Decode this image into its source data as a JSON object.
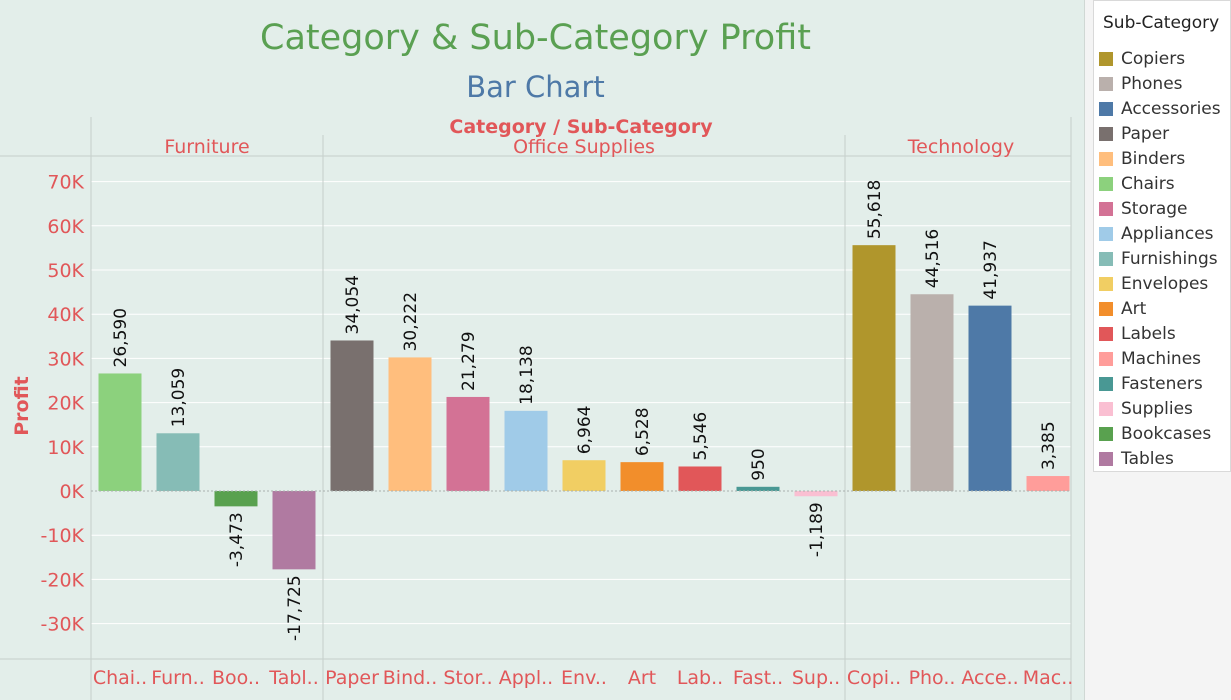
{
  "title": "Category & Sub-Category Profit",
  "subtitle": "Bar Chart",
  "legend_title": "Sub-Category",
  "colors": {
    "Copiers": "#b0962c",
    "Phones": "#bab0ac",
    "Accessories": "#4e79a7",
    "Paper": "#79706e",
    "Binders": "#ffbe7d",
    "Chairs": "#8cd17d",
    "Storage": "#d37295",
    "Appliances": "#a0cbe8",
    "Furnishings": "#86bcb6",
    "Envelopes": "#f1ce63",
    "Art": "#f28e2b",
    "Labels": "#e15759",
    "Machines": "#ff9d9a",
    "Fasteners": "#499894",
    "Supplies": "#fabfd2",
    "Bookcases": "#59a14f",
    "Tables": "#b07aa1"
  },
  "legend": [
    "Copiers",
    "Phones",
    "Accessories",
    "Paper",
    "Binders",
    "Chairs",
    "Storage",
    "Appliances",
    "Furnishings",
    "Envelopes",
    "Art",
    "Labels",
    "Machines",
    "Fasteners",
    "Supplies",
    "Bookcases",
    "Tables"
  ],
  "chart_data": {
    "type": "bar",
    "title": "Category & Sub-Category Profit",
    "subtitle": "Bar Chart",
    "xlabel": "Category / Sub-Category",
    "ylabel": "Profit",
    "ylim": [
      -37000,
      77000
    ],
    "yticks": [
      70000,
      60000,
      50000,
      40000,
      30000,
      20000,
      10000,
      0,
      -10000,
      -20000,
      -30000
    ],
    "ytick_labels": [
      "70K",
      "60K",
      "50K",
      "40K",
      "30K",
      "20K",
      "10K",
      "0K",
      "-10K",
      "-20K",
      "-30K"
    ],
    "grid": true,
    "legend_position": "right",
    "panels": [
      {
        "category": "Furniture",
        "subcategories": [
          "Chairs",
          "Furnishings",
          "Bookcases",
          "Tables"
        ],
        "tick_labels": [
          "Chai..",
          "Furn..",
          "Boo..",
          "Tabl.."
        ],
        "values": [
          26590,
          13059,
          -3473,
          -17725
        ],
        "data_labels": [
          "26,590",
          "13,059",
          "-3,473",
          "-17,725"
        ]
      },
      {
        "category": "Office Supplies",
        "subcategories": [
          "Paper",
          "Binders",
          "Storage",
          "Appliances",
          "Envelopes",
          "Art",
          "Labels",
          "Fasteners",
          "Supplies"
        ],
        "tick_labels": [
          "Paper",
          "Bind..",
          "Stor..",
          "Appl..",
          "Env..",
          "Art",
          "Lab..",
          "Fast..",
          "Sup.."
        ],
        "values": [
          34054,
          30222,
          21279,
          18138,
          6964,
          6528,
          5546,
          950,
          -1189
        ],
        "data_labels": [
          "34,054",
          "30,222",
          "21,279",
          "18,138",
          "6,964",
          "6,528",
          "5,546",
          "950",
          "-1,189"
        ]
      },
      {
        "category": "Technology",
        "subcategories": [
          "Copiers",
          "Phones",
          "Accessories",
          "Machines"
        ],
        "tick_labels": [
          "Copi..",
          "Pho..",
          "Acce..",
          "Mac.."
        ],
        "values": [
          55618,
          44516,
          41937,
          3385
        ],
        "data_labels": [
          "55,618",
          "44,516",
          "41,937",
          "3,385"
        ]
      }
    ]
  }
}
